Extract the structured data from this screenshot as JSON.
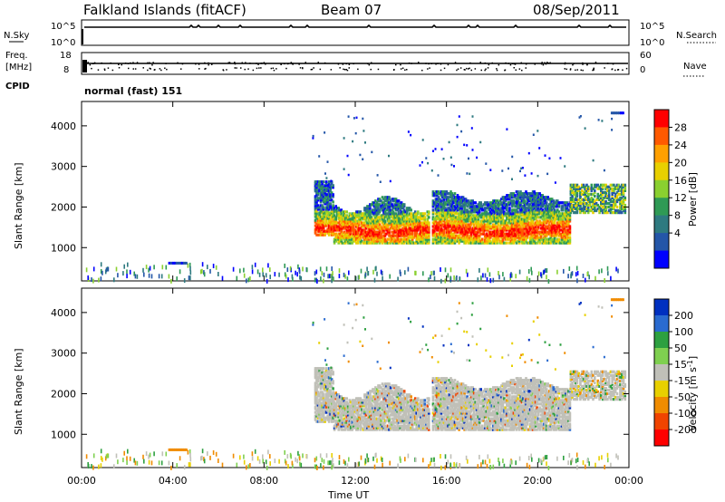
{
  "header": {
    "station": "Falkland Islands (fitACF)",
    "beam": "Beam 07",
    "date": "08/Sep/2011"
  },
  "top_panels": {
    "nsky_label": "N.Sky",
    "nsky_ticks": [
      "10^5",
      "10^0"
    ],
    "nsearch_label": "N.Search",
    "nsearch_ticks": [
      "10^5",
      "10^0"
    ],
    "freq_label": "Freq.",
    "freq_unit": "[MHz]",
    "freq_ticks": [
      "18",
      "8"
    ],
    "nave_label": "Nave",
    "nave_ticks": [
      "60",
      "0"
    ],
    "cpid_label": "CPID",
    "cpid_text": "normal (fast) 151"
  },
  "chart_data": [
    {
      "type": "heatmap",
      "name": "power-panel",
      "xlabel": "",
      "ylabel": "Slant Range [km]",
      "xlim": [
        0,
        24
      ],
      "ylim": [
        180,
        4600
      ],
      "y_ticks": [
        "4000",
        "3000",
        "2000",
        "1000"
      ],
      "colorbar": {
        "label": "Power [dB]",
        "ticks": [
          "28",
          "24",
          "20",
          "16",
          "12",
          "8",
          "4"
        ],
        "colors": [
          "#ff0000",
          "#ff5a00",
          "#ffa000",
          "#e8d000",
          "#8ad030",
          "#2f9a55",
          "#2e7a80",
          "#2456a8",
          "#0000ff"
        ]
      },
      "features": [
        {
          "desc": "main echo band",
          "x": [
            10.2,
            21.4
          ],
          "y": [
            1300,
            2700
          ],
          "peak": 28
        }
      ]
    },
    {
      "type": "heatmap",
      "name": "velocity-panel",
      "xlabel": "Time UT",
      "ylabel": "Slant Range [km]",
      "xlim": [
        0,
        24
      ],
      "ylim": [
        180,
        4600
      ],
      "y_ticks": [
        "4000",
        "3000",
        "2000",
        "1000"
      ],
      "x_ticks": [
        "00:00",
        "04:00",
        "08:00",
        "12:00",
        "16:00",
        "20:00",
        "00:00"
      ],
      "colorbar": {
        "label": "Velocity [m s",
        "label_sup": "-1",
        "label_end": "]",
        "ticks": [
          "200",
          "100",
          "50",
          "15",
          "-15",
          "-50",
          "-100",
          "-200"
        ],
        "colors": [
          "#0030c0",
          "#2a6bd0",
          "#2da040",
          "#7fd050",
          "#c0c0b8",
          "#e8d000",
          "#f08c00",
          "#f04400",
          "#ff0000"
        ]
      }
    }
  ]
}
